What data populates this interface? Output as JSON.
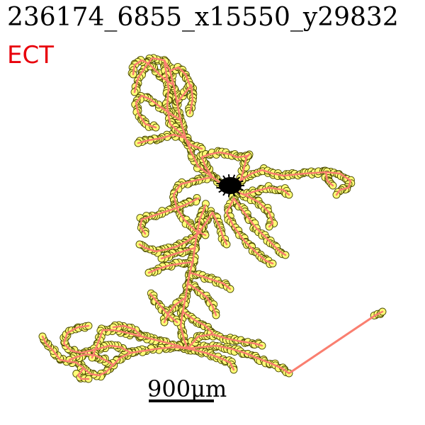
{
  "figure": {
    "title": "236174_6855_x15550_y29832",
    "label": "ECT",
    "scale_bar_label": "900μm",
    "colors": {
      "title": "#000000",
      "label": "#e8000b",
      "marker_fill": "#ffff77",
      "marker_edge": "#4a4a00",
      "branch_line": "#fa7f70",
      "soma": "#000000"
    }
  }
}
